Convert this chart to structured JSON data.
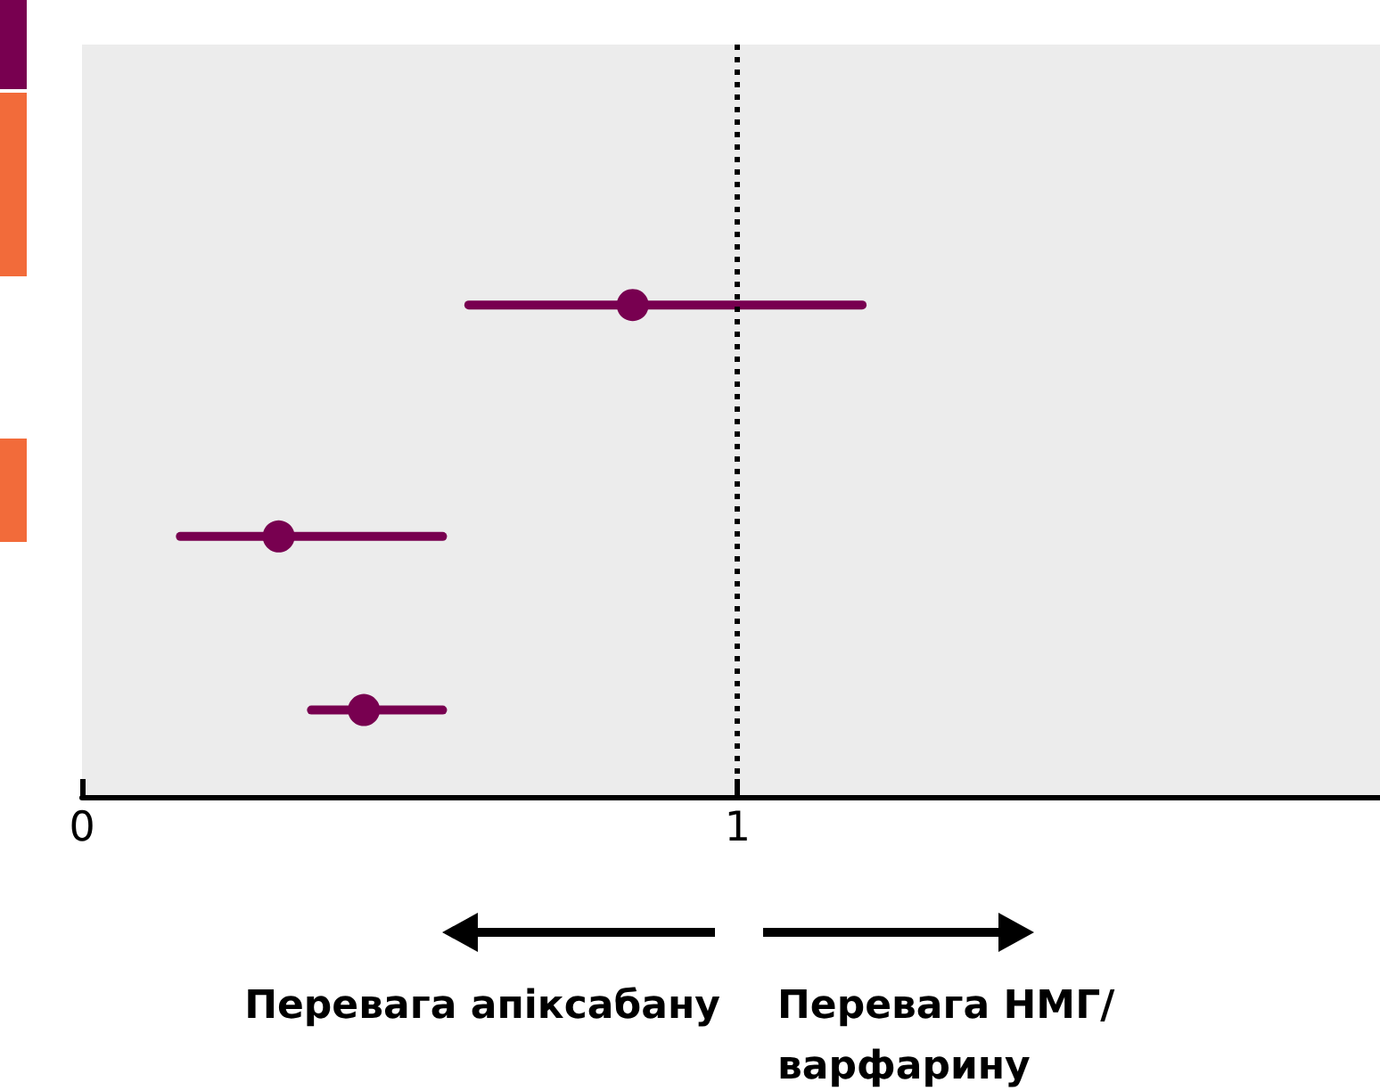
{
  "chart_data": {
    "type": "scatter",
    "orientation": "horizontal",
    "categories": [
      null,
      null,
      null,
      null,
      null,
      null,
      null,
      null,
      null,
      null,
      null,
      null,
      null
    ],
    "series": [
      {
        "color": "#780050",
        "values": [
          null,
          null,
          null,
          null,
          0.84,
          null,
          null,
          null,
          0.3,
          null,
          null,
          0.43,
          null
        ],
        "errors": [
          null,
          null,
          null,
          null,
          [
            0.59,
            1.19
          ],
          null,
          null,
          null,
          [
            0.15,
            0.55
          ],
          null,
          null,
          [
            0.35,
            0.55
          ],
          null
        ]
      }
    ],
    "xlim": [
      0,
      1.98
    ],
    "xticks": [
      0,
      1
    ],
    "ref_lines": [
      {
        "axis": "x",
        "value": 1,
        "color": "#000000",
        "line_style": "dotted"
      }
    ],
    "annotations": [
      "Перевага апіксабану",
      "Перевага НМГ/варфарину"
    ],
    "marker": "circle",
    "grid": false,
    "tick_labels": "x"
  }
}
